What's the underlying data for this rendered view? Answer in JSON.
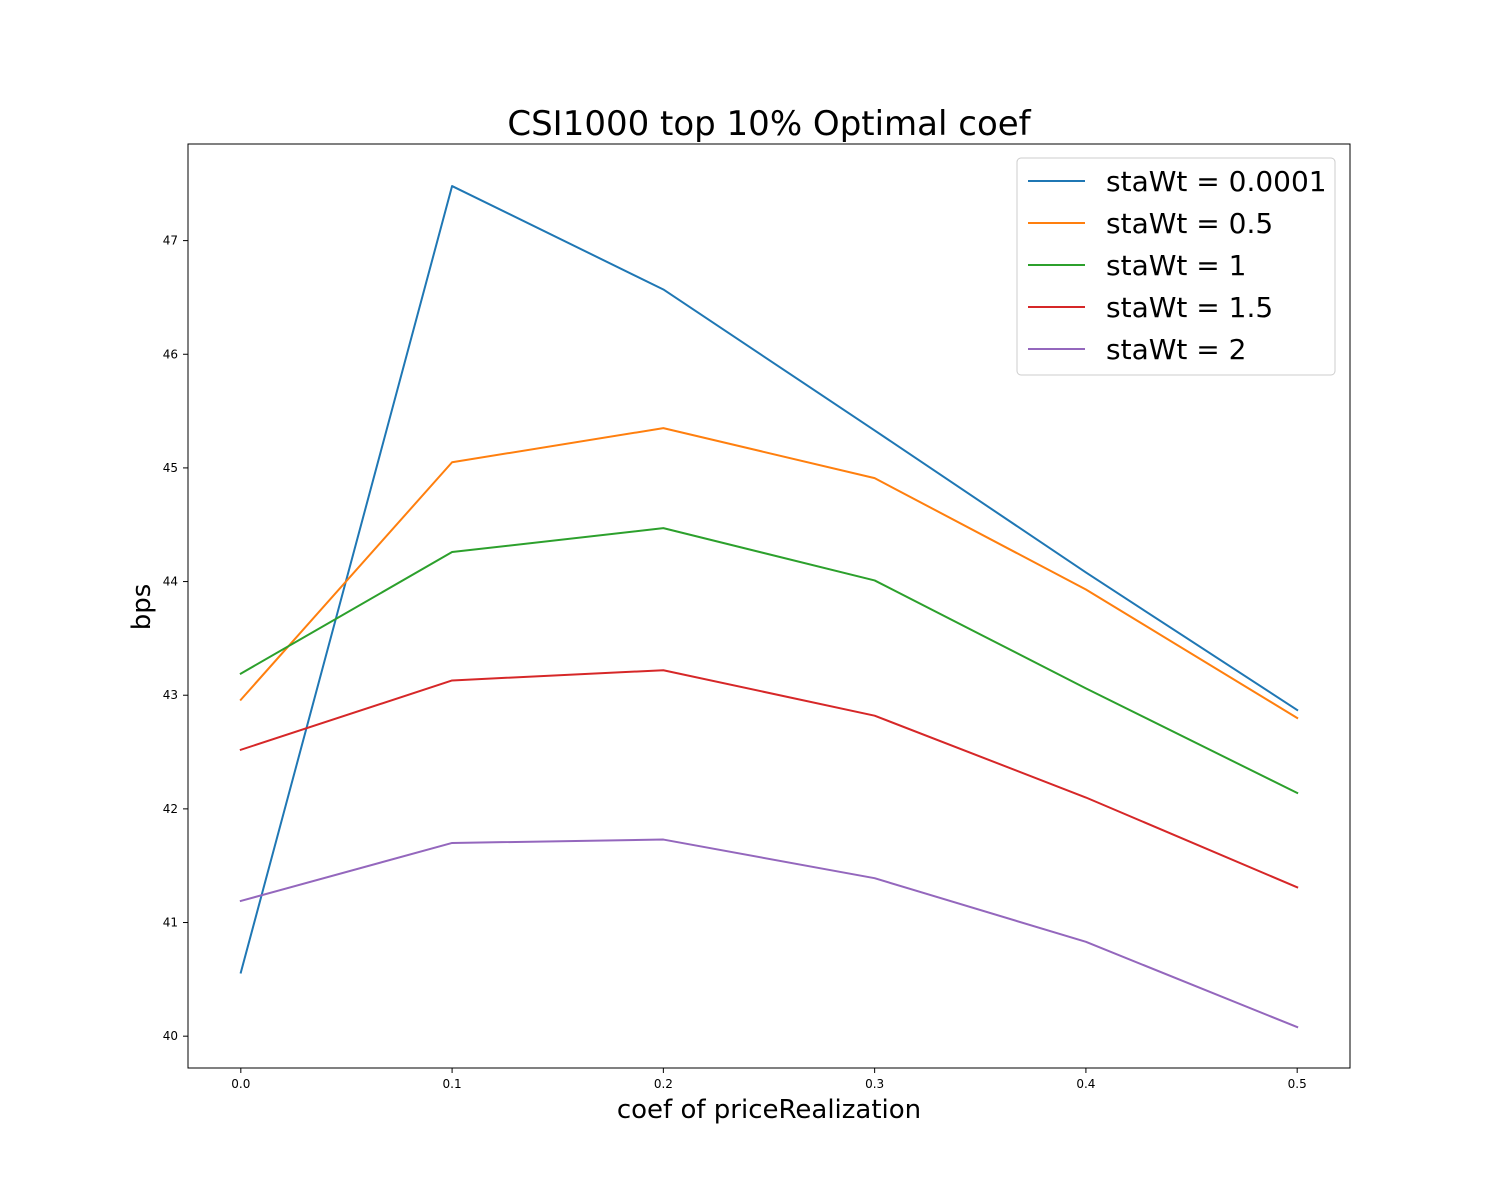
{
  "chart_data": {
    "type": "line",
    "title": "CSI1000 top 10% Optimal coef",
    "xlabel": "coef of priceRealization",
    "ylabel": "bps",
    "x": [
      0.0,
      0.1,
      0.2,
      0.3,
      0.4,
      0.5
    ],
    "x_ticks": [
      "0.0",
      "0.1",
      "0.2",
      "0.3",
      "0.4",
      "0.5"
    ],
    "y_ticks": [
      "40",
      "41",
      "42",
      "43",
      "44",
      "45",
      "46",
      "47"
    ],
    "xlim": [
      -0.025,
      0.525
    ],
    "ylim": [
      39.72,
      47.85
    ],
    "grid": false,
    "legend_position": "top-right",
    "series": [
      {
        "name": "staWt = 0.0001",
        "color": "#1f77b4",
        "values": [
          40.56,
          47.48,
          46.57,
          45.33,
          44.08,
          42.87
        ]
      },
      {
        "name": "staWt = 0.5",
        "color": "#ff7f0e",
        "values": [
          42.96,
          45.05,
          45.35,
          44.91,
          43.93,
          42.8
        ]
      },
      {
        "name": "staWt = 1",
        "color": "#2ca02c",
        "values": [
          43.19,
          44.26,
          44.47,
          44.01,
          43.06,
          42.14
        ]
      },
      {
        "name": "staWt = 1.5",
        "color": "#d62728",
        "values": [
          42.52,
          43.13,
          43.22,
          42.82,
          42.1,
          41.31
        ]
      },
      {
        "name": "staWt = 2",
        "color": "#9467bd",
        "values": [
          41.19,
          41.7,
          41.73,
          41.39,
          40.83,
          40.08
        ]
      }
    ]
  }
}
